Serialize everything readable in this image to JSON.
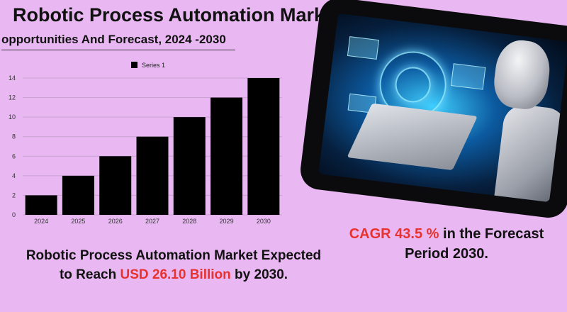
{
  "header": {
    "title": "Robotic Process Automation Market",
    "subtitle": "opportunities And Forecast, 2024 -2030"
  },
  "chart_data": {
    "type": "bar",
    "categories": [
      "2024",
      "2025",
      "2026",
      "2027",
      "2028",
      "2029",
      "2030"
    ],
    "series": [
      {
        "name": "Series 1",
        "values": [
          2,
          4,
          6,
          8,
          10,
          12,
          14
        ]
      }
    ],
    "ylim": [
      0,
      14
    ],
    "yticks": [
      0,
      2,
      4,
      6,
      8,
      10,
      12,
      14
    ],
    "grid": true,
    "legend": "top-center",
    "bar_color": "#000000",
    "grid_color": "#c9a2d1"
  },
  "image": {
    "icon": "robot-laptop-illustration"
  },
  "bottom": {
    "line1": "Robotic Process Automation Market Expected",
    "line2_prefix": "to Reach ",
    "line2_highlight": "USD  26.10 Billion",
    "line2_suffix": " by 2030."
  },
  "cagr": {
    "highlight": "CAGR 43.5 %",
    "rest_line1": " in the  Forecast",
    "line2": "Period  2030."
  },
  "colors": {
    "background": "#e9b8f2",
    "accent": "#e8322f"
  }
}
